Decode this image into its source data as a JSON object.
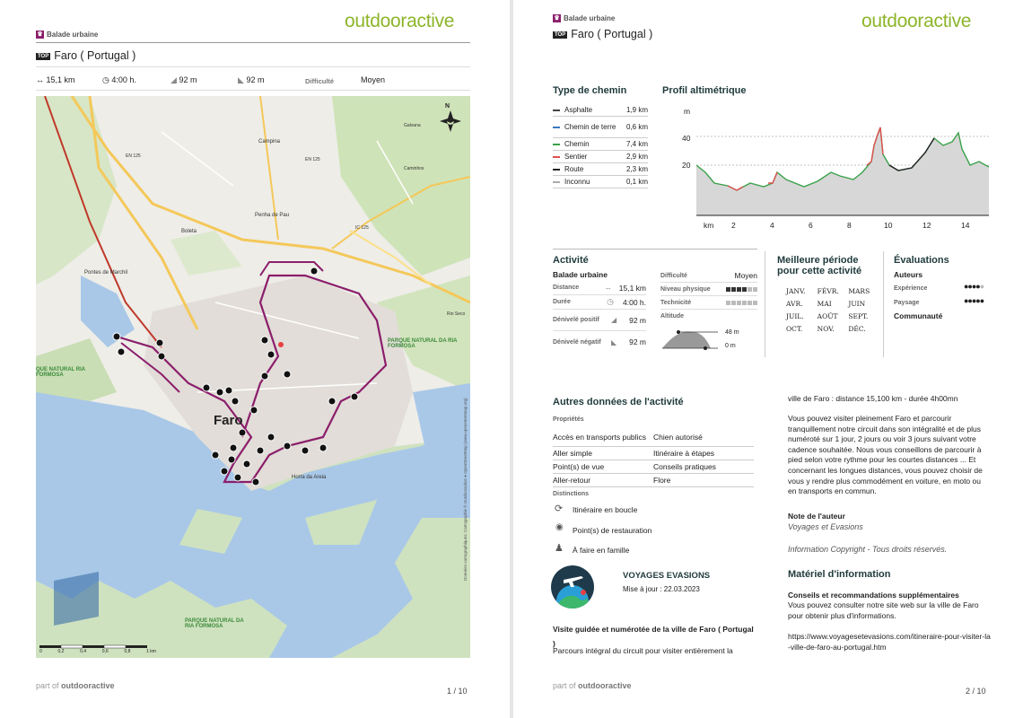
{
  "brand": "outdooractive",
  "footer": {
    "part_of": "part of",
    "brand": "outdooractive"
  },
  "page1": {
    "category": "Balade urbaine",
    "top_badge": "TOP",
    "title": "Faro ( Portugal )",
    "stats": {
      "distance": "15,1 km",
      "duration": "4:00 h.",
      "ascent": "92 m",
      "descent": "92 m",
      "difficulty_label": "Difficulté",
      "difficulty": "Moyen"
    },
    "map_labels": {
      "faro": "Faro",
      "boleta": "Boleta",
      "penha": "Penha de Pau",
      "campina": "Campina",
      "pontes": "Pontes de Marchil",
      "horta": "Horta da Areia",
      "parque1": "PARQUE NATURAL DA RIA FORMOSA",
      "parque2": "QUE NATURAL RIA FORMOSA",
      "parque3": "PARQUE NATURAL DA RIA FORMOSA",
      "n": "N",
      "gale": "Galvana",
      "cami": "Caminhos",
      "rio": "Rio Seco",
      "en125a": "EN 125",
      "en125b": "EN 125",
      "a22": "IC 125",
      "sens": "Données cartographiques: Cartographie © Outdooractive ● OpenStreetMap (www.openstreetmap.org)",
      "scale": [
        "0",
        "0,2",
        "0,4",
        "0,6",
        "0,8",
        "1 km"
      ]
    },
    "page_num": "1 / 10"
  },
  "page2": {
    "category": "Balade urbaine",
    "top_badge": "TOP",
    "title": "Faro ( Portugal )",
    "type_chemin": {
      "heading": "Type de chemin",
      "rows": [
        {
          "name": "Asphalte",
          "val": "1,9 km",
          "color": "#444"
        },
        {
          "name": "Chemin de terre",
          "val": "0,6 km",
          "color": "#3a78c2"
        },
        {
          "name": "Chemin",
          "val": "7,4 km",
          "color": "#3aa14a"
        },
        {
          "name": "Sentier",
          "val": "2,9 km",
          "color": "#e05050"
        },
        {
          "name": "Route",
          "val": "2,3 km",
          "color": "#222"
        },
        {
          "name": "Inconnu",
          "val": "0,1 km",
          "color": "#aaa"
        }
      ]
    },
    "profil": {
      "heading": "Profil altimétrique",
      "unit_y": "m",
      "y_ticks": [
        "40",
        "20"
      ],
      "unit_x": "km",
      "x_ticks": [
        "2",
        "4",
        "6",
        "8",
        "10",
        "12",
        "14"
      ]
    },
    "activite": {
      "heading": "Activité",
      "sub": "Balade urbaine",
      "rows": [
        {
          "label": "Distance",
          "val": "15,1 km"
        },
        {
          "label": "Durée",
          "val": "4:00 h."
        },
        {
          "label": "Dénivelé positif",
          "val": "92 m"
        },
        {
          "label": "Dénivelé négatif",
          "val": "92 m"
        }
      ],
      "difficulte_label": "Difficulté",
      "difficulte": "Moyen",
      "physique_label": "Niveau physique",
      "technicite_label": "Technicité",
      "altitude_label": "Altitude",
      "alt_max": "48 m",
      "alt_min": "0 m",
      "niveau_physique": 0.67,
      "technicite": 0
    },
    "periode": {
      "heading": "Meilleure période pour cette activité",
      "months": [
        "JANV.",
        "FÉVR.",
        "MARS",
        "AVR.",
        "MAI",
        "JUIN",
        "JUIL.",
        "AOÛT",
        "SEPT.",
        "OCT.",
        "NOV.",
        "DÉC."
      ]
    },
    "evaluations": {
      "heading": "Évaluations",
      "auteurs": "Auteurs",
      "experience": "Expérience",
      "paysage": "Paysage",
      "communaute": "Communauté"
    },
    "autres": {
      "heading": "Autres données de l'activité",
      "proprietes": "Propriétés",
      "left": [
        "Accès en transports publics",
        "Aller simple",
        "Point(s) de vue",
        "Aller-retour"
      ],
      "right": [
        "Chien autorisé",
        "Itinéraire à étapes",
        "Conseils pratiques",
        "Flore"
      ],
      "distinctions": "Distinctions",
      "dist": [
        "Itinéraire en boucle",
        "Point(s) de restauration",
        "À faire en famille"
      ]
    },
    "author": {
      "name": "VOYAGES EVASIONS",
      "update": "Mise à jour : 22.03.2023"
    },
    "visite_title": "Visite guidée et numérotée de la ville de Faro ( Portugal )",
    "visite_text": "Parcours intégral du circuit pour visiter entièrement la",
    "right_col": {
      "p1": "ville de Faro : distance 15,100 km - durée 4h00mn",
      "p2": "Vous pouvez visiter pleinement Faro et parcourir tranquillement notre circuit dans son intégralité et de plus numéroté sur 1 jour, 2 jours ou voir 3 jours suivant votre cadence souhaitée. Nous vous conseillons de parcourir à pied selon votre rythme pour les courtes distances ... Et concernant les longues distances, vous pouvez choisir de vous y rendre plus commodément en voiture, en moto ou en transports en commun.",
      "note_label": "Note de l'auteur",
      "note": "Voyages et Evasions",
      "copyright": "Information Copyright - Tous droits réservés.",
      "materiel": "Matériel d'information",
      "conseils_title": "Conseils et recommandations supplémentaires",
      "conseils": "Vous pouvez consulter notre site web sur la ville de Faro pour obtenir plus d'informations.",
      "url": "https://www.voyagesetevasions.com/itineraire-pour-visiter-la-ville-de-faro-au-portugal.htm"
    },
    "page_num": "2 / 10"
  }
}
